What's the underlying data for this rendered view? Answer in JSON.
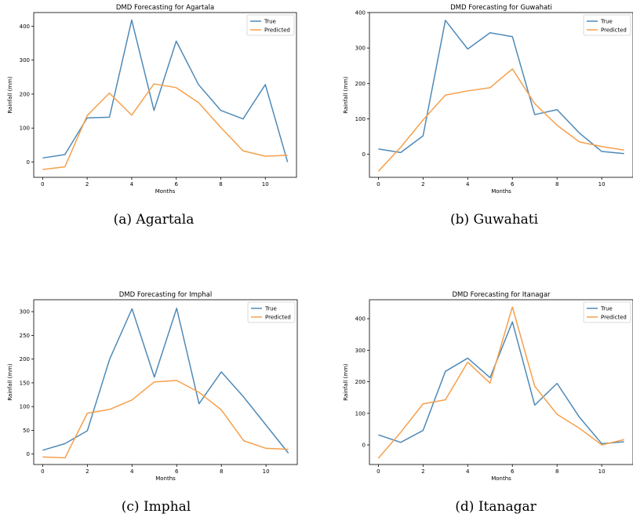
{
  "colors": {
    "true": "#4f8ab8",
    "predicted": "#f5a04c"
  },
  "chart_data": [
    {
      "type": "line",
      "title": "DMD Forecasting for Agartala",
      "caption": "(a) Agartala",
      "xlabel": "Months",
      "ylabel": "Rainfall (mm)",
      "legend": "top-right",
      "xlim": [
        -0.4,
        11.4
      ],
      "ylim": [
        -45,
        440
      ],
      "xticks": [
        0,
        2,
        4,
        6,
        8,
        10
      ],
      "yticks": [
        0,
        100,
        200,
        300,
        400
      ],
      "x": [
        0,
        1,
        2,
        3,
        4,
        5,
        6,
        7,
        8,
        9,
        10,
        11
      ],
      "series": [
        {
          "name": "True",
          "values": [
            12,
            22,
            130,
            132,
            418,
            152,
            356,
            228,
            152,
            127,
            228,
            0
          ]
        },
        {
          "name": "Predicted",
          "values": [
            -22,
            -14,
            137,
            203,
            138,
            230,
            219,
            175,
            102,
            33,
            17,
            20
          ]
        }
      ]
    },
    {
      "type": "line",
      "title": "DMD Forecasting for Guwahati",
      "caption": "(b) Guwahati",
      "xlabel": "Months",
      "ylabel": "Rainfall (mm)",
      "legend": "top-right",
      "xlim": [
        -0.4,
        11.4
      ],
      "ylim": [
        -65,
        400
      ],
      "xticks": [
        0,
        2,
        4,
        6,
        8,
        10
      ],
      "yticks": [
        0,
        100,
        200,
        300,
        400
      ],
      "x": [
        0,
        1,
        2,
        3,
        4,
        5,
        6,
        7,
        8,
        9,
        10,
        11
      ],
      "series": [
        {
          "name": "True",
          "values": [
            15,
            5,
            52,
            378,
            297,
            343,
            332,
            112,
            126,
            60,
            8,
            2
          ]
        },
        {
          "name": "Predicted",
          "values": [
            -48,
            20,
            97,
            167,
            179,
            188,
            241,
            143,
            82,
            35,
            22,
            12
          ]
        }
      ]
    },
    {
      "type": "line",
      "title": "DMD Forecasting for Imphal",
      "caption": "(c) Imphal",
      "xlabel": "Months",
      "ylabel": "Rainfall (mm)",
      "legend": "top-right",
      "xlim": [
        -0.4,
        11.4
      ],
      "ylim": [
        -22,
        325
      ],
      "xticks": [
        0,
        2,
        4,
        6,
        8,
        10
      ],
      "yticks": [
        0,
        50,
        100,
        150,
        200,
        250,
        300
      ],
      "x": [
        0,
        1,
        2,
        3,
        4,
        5,
        6,
        7,
        8,
        9,
        10,
        11
      ],
      "series": [
        {
          "name": "True",
          "values": [
            8,
            22,
            49,
            200,
            306,
            162,
            307,
            106,
            173,
            120,
            61,
            2
          ]
        },
        {
          "name": "Predicted",
          "values": [
            -6,
            -8,
            86,
            94,
            114,
            152,
            155,
            130,
            93,
            28,
            12,
            10
          ]
        }
      ]
    },
    {
      "type": "line",
      "title": "DMD Forecasting for Itanagar",
      "caption": "(d) Itanagar",
      "xlabel": "Months",
      "ylabel": "Rainfall (mm)",
      "legend": "top-right",
      "xlim": [
        -0.4,
        11.4
      ],
      "ylim": [
        -62,
        460
      ],
      "xticks": [
        0,
        2,
        4,
        6,
        8,
        10
      ],
      "yticks": [
        0,
        100,
        200,
        300,
        400
      ],
      "x": [
        0,
        1,
        2,
        3,
        4,
        5,
        6,
        7,
        8,
        9,
        10,
        11
      ],
      "series": [
        {
          "name": "True",
          "values": [
            32,
            8,
            46,
            233,
            275,
            213,
            390,
            126,
            195,
            88,
            4,
            10
          ]
        },
        {
          "name": "Predicted",
          "values": [
            -42,
            40,
            130,
            143,
            262,
            196,
            437,
            186,
            97,
            53,
            0,
            17
          ]
        }
      ]
    }
  ]
}
